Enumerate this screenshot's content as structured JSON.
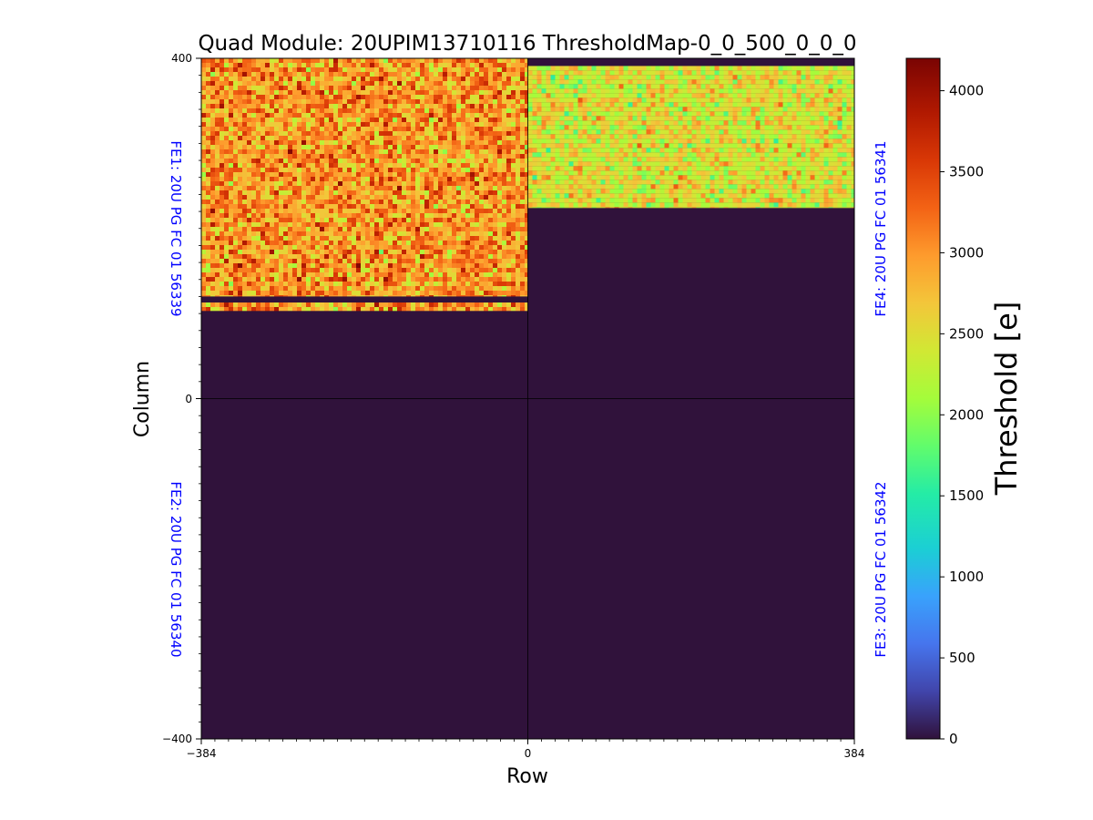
{
  "chart_data": {
    "type": "heatmap",
    "title": "Quad Module: 20UPIM13710116 ThresholdMap-0_0_500_0_0_0",
    "xlabel": "Row",
    "ylabel": "Column",
    "xlim": [
      -384,
      384
    ],
    "ylim": [
      -400,
      400
    ],
    "x_ticks": [
      "−384",
      "0",
      "384"
    ],
    "y_ticks": [
      "400",
      "0",
      "−400"
    ],
    "colorbar": {
      "label": "Threshold [e]",
      "colormap": "turbo",
      "range": [
        0,
        4200
      ],
      "ticks": [
        "0",
        "500",
        "1000",
        "1500",
        "2000",
        "2500",
        "3000",
        "3500",
        "4000"
      ]
    },
    "background_value": 0,
    "front_ends": [
      {
        "label": "FE1: 20U PG FC 01 56339",
        "quadrant": "top-left",
        "label_side": "left",
        "label_color": "#0000ff",
        "regions": [
          {
            "x": [
              -384,
              0
            ],
            "y": [
              120,
              400
            ],
            "mean_threshold": 3000,
            "spread": 700
          },
          {
            "x": [
              -384,
              0
            ],
            "y": [
              103,
              113
            ],
            "mean_threshold": 3000,
            "spread": 700
          }
        ]
      },
      {
        "label": "FE2: 20U PG FC 01 56340",
        "quadrant": "bottom-left",
        "label_side": "left",
        "label_color": "#0000ff",
        "regions": []
      },
      {
        "label": "FE3: 20U PG FC 01 56342",
        "quadrant": "bottom-right",
        "label_side": "right",
        "label_color": "#0000ff",
        "regions": []
      },
      {
        "label": "FE4: 20U PG FC 01 56341",
        "quadrant": "top-right",
        "label_side": "right",
        "label_color": "#0000ff",
        "regions": [
          {
            "x": [
              0,
              384
            ],
            "y": [
              224,
              391
            ],
            "mean_threshold": 2450,
            "spread": 600
          }
        ]
      }
    ]
  }
}
